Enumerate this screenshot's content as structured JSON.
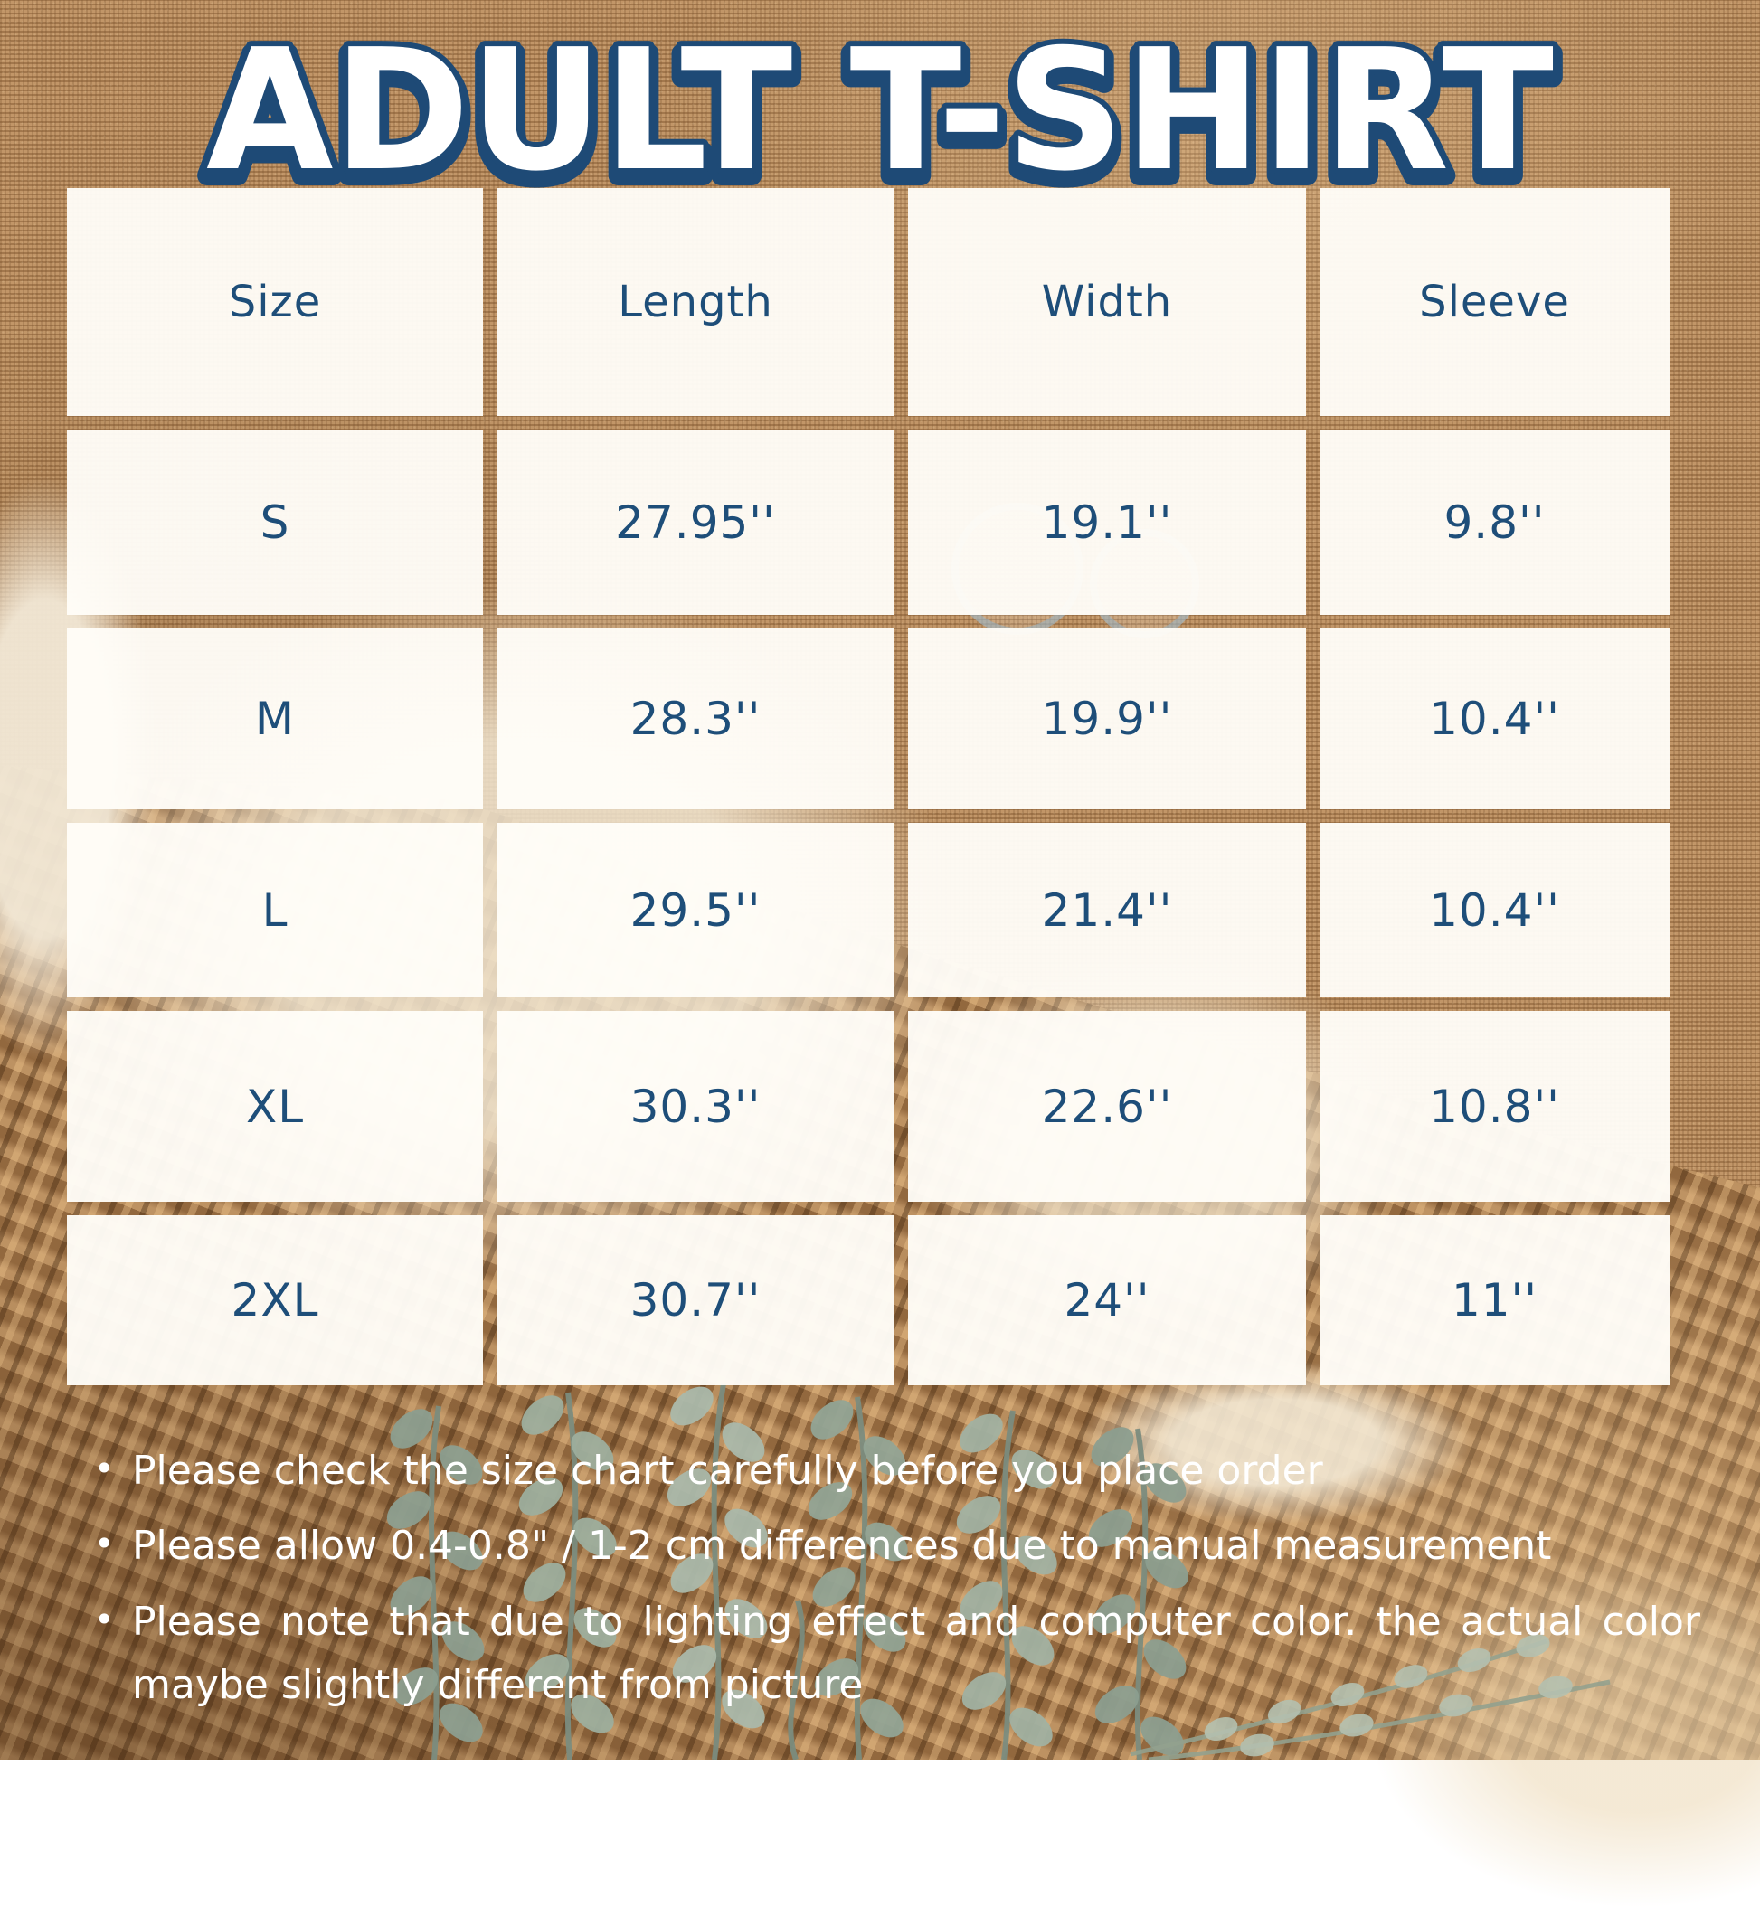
{
  "title": "ADULT T-SHIRT",
  "chart_data": {
    "type": "table",
    "title": "ADULT T-SHIRT",
    "columns": [
      "Size",
      "Length",
      "Width",
      "Sleeve"
    ],
    "rows": [
      [
        "S",
        "27.95''",
        "19.1''",
        "9.8''"
      ],
      [
        "M",
        "28.3''",
        "19.9''",
        "10.4''"
      ],
      [
        "L",
        "29.5''",
        "21.4''",
        "10.4''"
      ],
      [
        "XL",
        "30.3''",
        "22.6''",
        "10.8''"
      ],
      [
        "2XL",
        "30.7''",
        "24''",
        "11''"
      ]
    ]
  },
  "notes": [
    "Please check the size chart carefully before you place order",
    "Please allow 0.4-0.8\" / 1-2 cm differences due to manual measurement",
    "Please note that due to lighting effect and computer color. the actual color maybe slightly different from picture"
  ],
  "colors": {
    "table_text": "#1e4e79",
    "title_fill": "#ffffff",
    "title_outline": "#1e4a76",
    "notes_text": "#ffffff",
    "burlap_background": "#b5885a",
    "placemat_background": "#a87b4d",
    "cell_background": "#fffdf9",
    "leaf_green": "#93a595"
  }
}
